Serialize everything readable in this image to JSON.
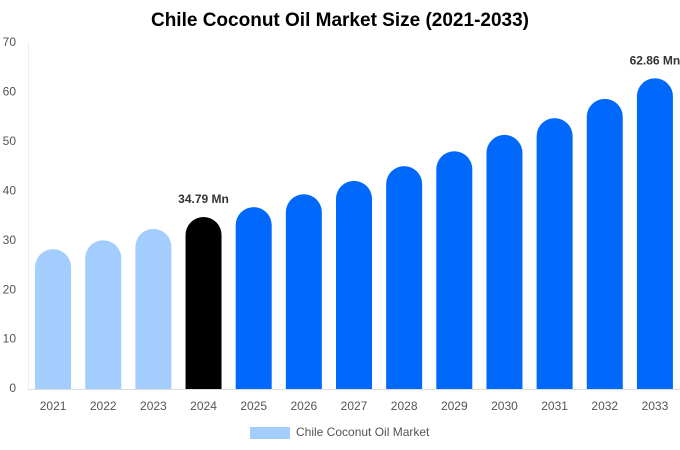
{
  "chart_data": {
    "type": "bar",
    "title": "Chile Coconut Oil Market Size (2021-2033)",
    "categories": [
      "2021",
      "2022",
      "2023",
      "2024",
      "2025",
      "2026",
      "2027",
      "2028",
      "2029",
      "2030",
      "2031",
      "2032",
      "2033"
    ],
    "series": [
      {
        "name": "Chile Coconut Oil Market",
        "color": "#a3cdfd",
        "colors": [
          "#a3cdfd",
          "#a3cdfd",
          "#a3cdfd",
          "#000000",
          "#0069fb",
          "#0069fb",
          "#0069fb",
          "#0069fb",
          "#0069fb",
          "#0069fb",
          "#0069fb",
          "#0069fb",
          "#0069fb"
        ],
        "values": [
          28.3,
          30.1,
          32.4,
          34.79,
          36.8,
          39.4,
          42.1,
          45.1,
          48.1,
          51.4,
          54.8,
          58.7,
          62.86
        ],
        "value_labels": [
          null,
          null,
          null,
          "34.79 Mn",
          null,
          null,
          null,
          null,
          null,
          null,
          null,
          null,
          "62.86 Mn"
        ]
      }
    ],
    "ylim": [
      0,
      70
    ],
    "yticks": [
      0,
      10,
      20,
      30,
      40,
      50,
      60,
      70
    ],
    "grid": false
  }
}
